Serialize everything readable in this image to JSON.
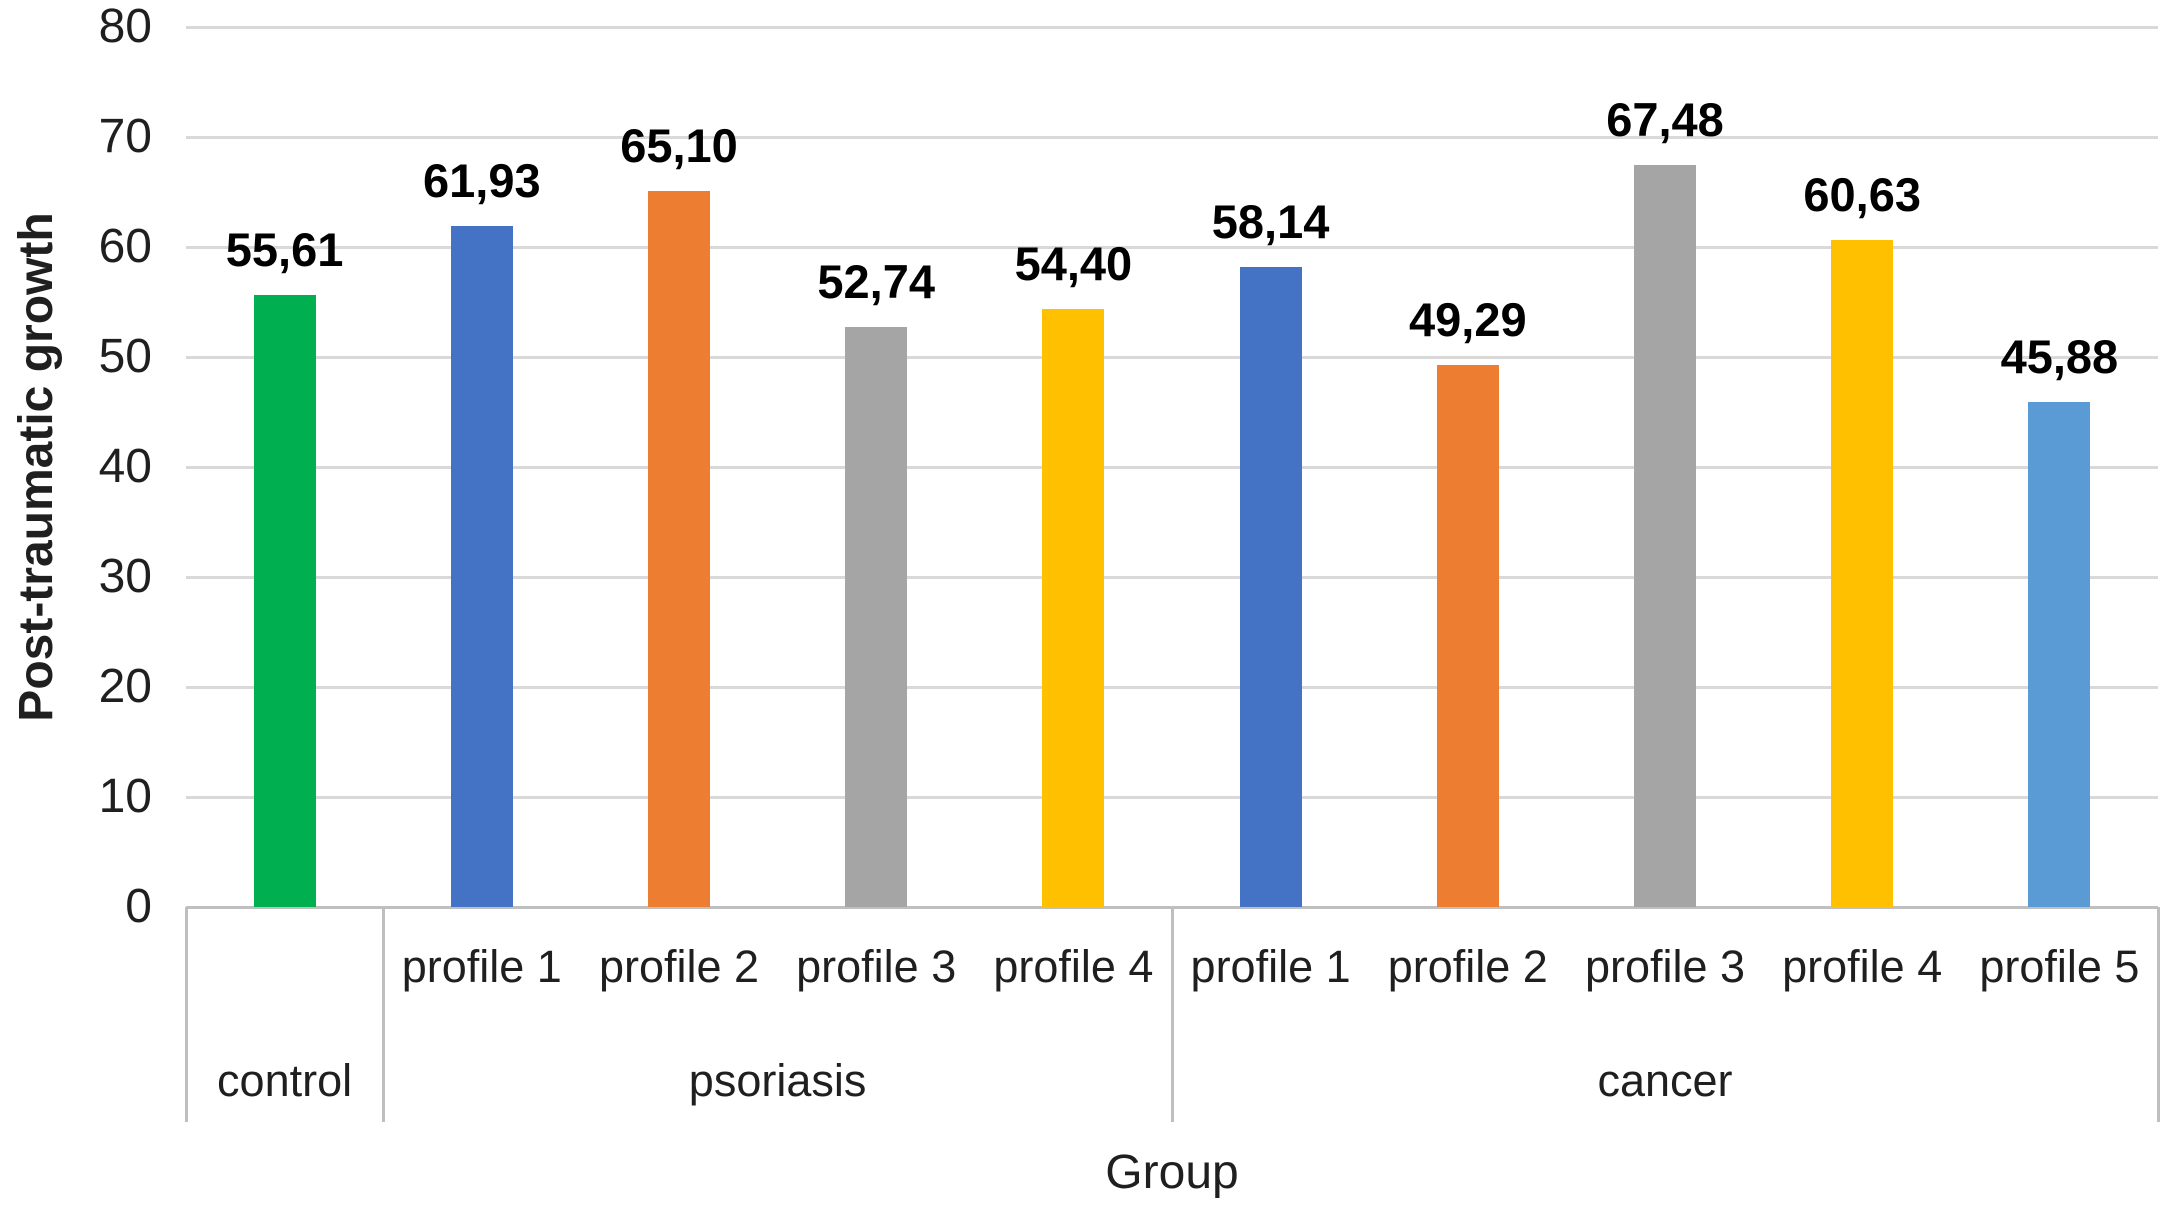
{
  "chart_data": {
    "type": "bar",
    "title": "",
    "xlabel": "Group",
    "ylabel": "Post-traumatic growth",
    "ylim": [
      0,
      80
    ],
    "ytick_step": 10,
    "ytick_labels": [
      "0",
      "10",
      "20",
      "30",
      "40",
      "50",
      "60",
      "70",
      "80"
    ],
    "grid": true,
    "legend": "none",
    "decimal_separator": ",",
    "groups": [
      {
        "label": "control",
        "bars": [
          {
            "profile": "",
            "value": 55.61,
            "value_label": "55,61",
            "color": "#00B050"
          }
        ]
      },
      {
        "label": "psoriasis",
        "bars": [
          {
            "profile": "profile 1",
            "value": 61.93,
            "value_label": "61,93",
            "color": "#4472C4"
          },
          {
            "profile": "profile 2",
            "value": 65.1,
            "value_label": "65,10",
            "color": "#ED7D31"
          },
          {
            "profile": "profile 3",
            "value": 52.74,
            "value_label": "52,74",
            "color": "#A5A5A5"
          },
          {
            "profile": "profile 4",
            "value": 54.4,
            "value_label": "54,40",
            "color": "#FFC000"
          }
        ]
      },
      {
        "label": "cancer",
        "bars": [
          {
            "profile": "profile 1",
            "value": 58.14,
            "value_label": "58,14",
            "color": "#4472C4"
          },
          {
            "profile": "profile 2",
            "value": 49.29,
            "value_label": "49,29",
            "color": "#ED7D31"
          },
          {
            "profile": "profile 3",
            "value": 67.48,
            "value_label": "67,48",
            "color": "#A5A5A5"
          },
          {
            "profile": "profile 4",
            "value": 60.63,
            "value_label": "60,63",
            "color": "#FFC000"
          },
          {
            "profile": "profile 5",
            "value": 45.88,
            "value_label": "45,88",
            "color": "#5B9BD5"
          }
        ]
      }
    ],
    "colors": {
      "gridline": "#D9D9D9",
      "axis_line": "#BFBFBF",
      "text": "#1f1f1f"
    }
  }
}
